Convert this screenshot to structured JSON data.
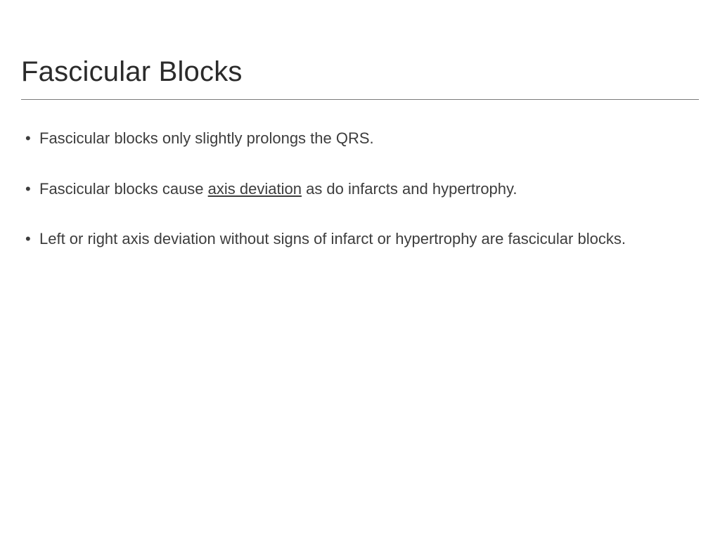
{
  "slide": {
    "title": "Fascicular Blocks",
    "title_fontsize": 40,
    "title_color": "#2b2b2b",
    "divider_color": "#7a7a7a",
    "background_color": "#ffffff",
    "body_fontsize": 22,
    "body_color": "#3d3d3d",
    "bullets": [
      {
        "pre": "Fascicular blocks only slightly prolongs the QRS.",
        "underlined": "",
        "post": ""
      },
      {
        "pre": "Fascicular blocks cause ",
        "underlined": "axis deviation",
        "post": " as do infarcts and hypertrophy."
      },
      {
        "pre": "Left or right axis deviation without signs of infarct or hypertrophy are fascicular blocks.",
        "underlined": "",
        "post": ""
      }
    ]
  }
}
